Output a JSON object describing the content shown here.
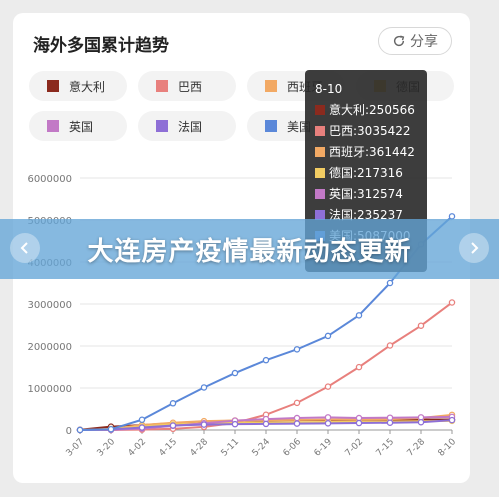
{
  "card": {
    "title": "海外多国累计趋势",
    "share_label": "分享"
  },
  "colors": {
    "italy": "#8b2a1e",
    "brazil": "#e8807d",
    "spain": "#f2a964",
    "germany": "#f2cc62",
    "uk": "#c279c6",
    "france": "#8e6fd6",
    "usa": "#5b88d9"
  },
  "tooltip": {
    "date": "8-10",
    "rows": [
      {
        "label": "意大利:250566",
        "color": "#8b2a1e"
      },
      {
        "label": "巴西:3035422",
        "color": "#e8807d"
      },
      {
        "label": "西班牙:361442",
        "color": "#f2a964"
      },
      {
        "label": "德国:217316",
        "color": "#f2cc62"
      },
      {
        "label": "英国:312574",
        "color": "#c279c6"
      },
      {
        "label": "法国:235237",
        "color": "#8e6fd6"
      },
      {
        "label": "美国:5087000",
        "color": "#5b88d9"
      }
    ]
  },
  "banner": {
    "text": "大连房产疫情最新动态更新"
  },
  "chart_data": {
    "type": "line",
    "x": [
      "3-07",
      "3-20",
      "4-02",
      "4-15",
      "4-28",
      "5-11",
      "5-24",
      "6-06",
      "6-19",
      "7-02",
      "7-15",
      "7-28",
      "8-10"
    ],
    "ylim": [
      0,
      6000000
    ],
    "yticks": [
      "0",
      "1000000",
      "2000000",
      "3000000",
      "4000000",
      "5000000",
      "6000000"
    ],
    "legend_position": "top",
    "series": [
      {
        "name": "意大利",
        "color": "#8b2a1e",
        "values": [
          5900,
          80500,
          115200,
          162500,
          201500,
          219000,
          229900,
          234500,
          238200,
          240900,
          243500,
          246300,
          250566
        ]
      },
      {
        "name": "巴西",
        "color": "#e8807d",
        "values": [
          20,
          900,
          8000,
          28300,
          73200,
          168300,
          363200,
          645800,
          1032900,
          1496900,
          2012100,
          2483200,
          3035422
        ]
      },
      {
        "name": "西班牙",
        "color": "#f2a964",
        "values": [
          500,
          25000,
          117700,
          172500,
          210700,
          227400,
          235400,
          241700,
          245600,
          250100,
          258300,
          285400,
          361442
        ]
      },
      {
        "name": "德国",
        "color": "#f2cc62",
        "values": [
          800,
          19800,
          84800,
          134800,
          160000,
          171300,
          179000,
          183900,
          189800,
          195900,
          201300,
          207700,
          217316
        ]
      },
      {
        "name": "英国",
        "color": "#c279c6",
        "values": [
          200,
          4000,
          34000,
          98500,
          161100,
          223000,
          260000,
          285400,
          301800,
          285300,
          292900,
          301800,
          312574
        ]
      },
      {
        "name": "法国",
        "color": "#8e6fd6",
        "values": [
          900,
          12600,
          59100,
          106200,
          128400,
          139500,
          144900,
          153000,
          158600,
          165700,
          173300,
          185000,
          235237
        ]
      },
      {
        "name": "美国",
        "color": "#5b88d9",
        "values": [
          400,
          19100,
          244000,
          636300,
          1012600,
          1356000,
          1662400,
          1920000,
          2240000,
          2730000,
          3500000,
          4420000,
          5087000
        ]
      }
    ]
  }
}
